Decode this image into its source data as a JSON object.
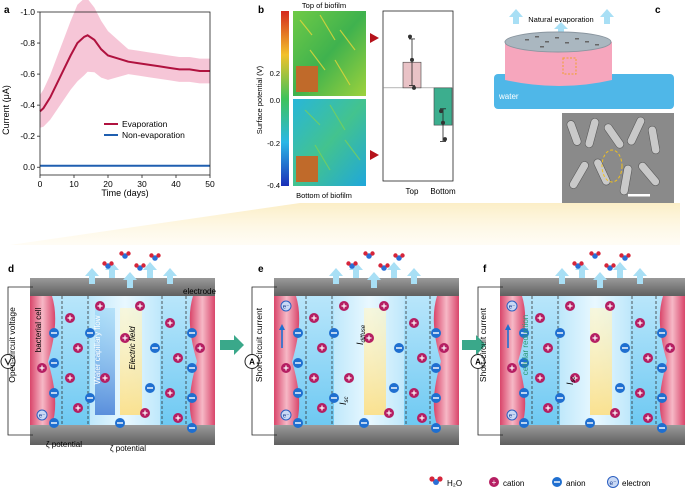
{
  "panels": {
    "a": "a",
    "b": "b",
    "c": "c",
    "d": "d",
    "e": "e",
    "f": "f"
  },
  "panel_a": {
    "ylabel": "Current (μA)",
    "xlabel": "Time (days)",
    "yticks": [
      "-1.0",
      "-0.8",
      "-0.6",
      "-0.4",
      "-0.2",
      "0.0"
    ],
    "xticks": [
      "0",
      "10",
      "20",
      "30",
      "40",
      "50"
    ],
    "legend": [
      "Evaporation",
      "Non-evaporation"
    ]
  },
  "panel_b": {
    "top_title": "Top of biofilm",
    "bottom_title": "Bottom of biofilm",
    "ylabel": "Surface potential (V)",
    "yticks": [
      "0.2",
      "0.0",
      "-0.2",
      "-0.4"
    ],
    "xcategories": [
      "Top",
      "Bottom"
    ]
  },
  "panel_c": {
    "evap_label": "Natural evaporation",
    "water_label": "water"
  },
  "panel_d": {
    "side_label": "Open-circuit voltage",
    "electrode": "electrode",
    "cell": "bacterial cell",
    "flow": "Water capillary flow",
    "field": "Electric field",
    "zeta": "ζ potential",
    "electron": "e⁻"
  },
  "panel_e": {
    "side_label": "Short-circuit current",
    "idiffuse": "I",
    "idiffuse_sub": "diffuse",
    "isc": "I",
    "isc_sub": "sc",
    "meter": "A"
  },
  "panel_f": {
    "side_label": "Short-circuit current",
    "reduction": "cellular reduction",
    "isc": "I",
    "isc_sub": "sc",
    "meter": "A"
  },
  "legend_bottom": {
    "h2o": "H₂O",
    "cation": "cation",
    "anion": "anion",
    "electron": "electron"
  },
  "chart_data": [
    {
      "type": "line",
      "panel": "a",
      "xlabel": "Time (days)",
      "ylabel": "Current (μA)",
      "xlim": [
        0,
        50
      ],
      "ylim": [
        -1.0,
        0.05
      ],
      "series": [
        {
          "name": "Evaporation",
          "color": "#b0123f",
          "x": [
            0,
            1,
            3,
            5,
            7,
            9,
            11,
            13,
            14,
            16,
            18,
            20,
            23,
            26,
            29,
            32,
            35,
            38,
            41,
            44,
            47,
            50
          ],
          "y": [
            -0.36,
            -0.38,
            -0.45,
            -0.54,
            -0.63,
            -0.72,
            -0.8,
            -0.84,
            -0.85,
            -0.82,
            -0.76,
            -0.72,
            -0.7,
            -0.68,
            -0.67,
            -0.66,
            -0.65,
            -0.64,
            -0.63,
            -0.63,
            -0.62,
            -0.62
          ]
        },
        {
          "name": "Non-evaporation",
          "color": "#1f5fb0",
          "x": [
            0,
            10,
            20,
            30,
            40,
            50
          ],
          "y": [
            -0.01,
            -0.01,
            -0.01,
            -0.01,
            -0.01,
            -0.01
          ]
        }
      ]
    },
    {
      "type": "bar",
      "panel": "b",
      "ylabel": "Surface potential (V)",
      "categories": [
        "Top",
        "Bottom"
      ],
      "values": [
        0.11,
        -0.16
      ],
      "errors": [
        0.1,
        0.07
      ],
      "points": [
        [
          0.22,
          0.12,
          0.0
        ],
        [
          -0.1,
          -0.15,
          -0.22
        ]
      ],
      "ylim": [
        -0.4,
        0.33
      ],
      "colors": [
        "#e9c2c6",
        "#3cae8e"
      ]
    }
  ]
}
